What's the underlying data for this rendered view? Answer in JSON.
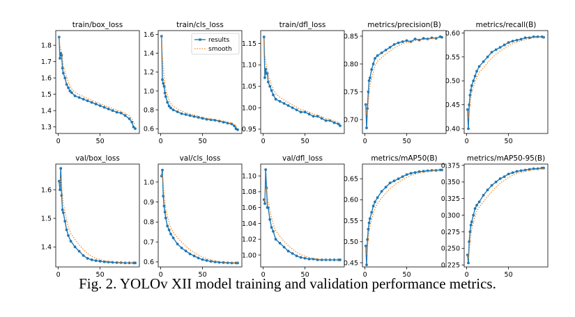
{
  "caption": "Fig. 2. YOLOv XII model training and validation performance metrics.",
  "legend": {
    "results_label": "results",
    "smooth_label": "smooth"
  },
  "colors": {
    "results": "#1f77b4",
    "smooth": "#ff7f0e",
    "axis": "#000000"
  },
  "chart_data": [
    {
      "type": "line",
      "title": "train/box_loss",
      "legend": false,
      "xlim": [
        -3,
        97
      ],
      "ylim": [
        1.26,
        1.89
      ],
      "xticks": [
        0,
        50
      ],
      "yticks": [
        1.3,
        1.4,
        1.5,
        1.6,
        1.7,
        1.8
      ],
      "ytick_labels": [
        "1.3",
        "1.4",
        "1.5",
        "1.6",
        "1.7",
        "1.8"
      ],
      "series": [
        {
          "name": "results",
          "x": [
            1,
            2,
            3,
            4,
            5,
            6,
            8,
            10,
            12,
            14,
            16,
            20,
            25,
            30,
            35,
            40,
            45,
            50,
            55,
            60,
            65,
            70,
            75,
            80,
            85,
            88,
            90,
            92
          ],
          "y": [
            1.85,
            1.72,
            1.75,
            1.74,
            1.66,
            1.63,
            1.6,
            1.56,
            1.54,
            1.52,
            1.51,
            1.49,
            1.48,
            1.47,
            1.46,
            1.45,
            1.44,
            1.43,
            1.42,
            1.41,
            1.4,
            1.39,
            1.385,
            1.37,
            1.35,
            1.33,
            1.3,
            1.29
          ]
        }
      ]
    },
    {
      "type": "line",
      "title": "train/cls_loss",
      "legend": true,
      "legend_position": "top-right",
      "xlim": [
        -3,
        97
      ],
      "ylim": [
        0.55,
        1.64
      ],
      "xticks": [
        0,
        50
      ],
      "yticks": [
        0.6,
        0.8,
        1.0,
        1.2,
        1.4,
        1.6
      ],
      "ytick_labels": [
        "0.6",
        "0.8",
        "1.0",
        "1.2",
        "1.4",
        "1.6"
      ],
      "series": [
        {
          "name": "results",
          "x": [
            1,
            2,
            3,
            4,
            5,
            6,
            8,
            10,
            12,
            15,
            20,
            25,
            30,
            35,
            40,
            45,
            50,
            55,
            60,
            65,
            70,
            75,
            80,
            85,
            88,
            90,
            92
          ],
          "y": [
            1.58,
            1.12,
            1.08,
            1.05,
            0.98,
            0.94,
            0.88,
            0.84,
            0.82,
            0.8,
            0.78,
            0.76,
            0.75,
            0.74,
            0.73,
            0.72,
            0.71,
            0.7,
            0.695,
            0.69,
            0.68,
            0.67,
            0.66,
            0.65,
            0.63,
            0.6,
            0.59
          ]
        }
      ]
    },
    {
      "type": "line",
      "title": "train/dfl_loss",
      "legend": false,
      "xlim": [
        -3,
        97
      ],
      "ylim": [
        0.94,
        1.18
      ],
      "xticks": [
        0,
        50
      ],
      "yticks": [
        0.95,
        1.0,
        1.05,
        1.1,
        1.15
      ],
      "ytick_labels": [
        "0.95",
        "1.00",
        "1.05",
        "1.10",
        "1.15"
      ],
      "series": [
        {
          "name": "results",
          "x": [
            1,
            2,
            3,
            4,
            5,
            6,
            8,
            10,
            12,
            15,
            20,
            25,
            30,
            35,
            40,
            45,
            50,
            55,
            60,
            65,
            70,
            75,
            80,
            85,
            90,
            92
          ],
          "y": [
            1.165,
            1.07,
            1.09,
            1.08,
            1.08,
            1.06,
            1.05,
            1.04,
            1.03,
            1.02,
            1.015,
            1.01,
            1.005,
            1.0,
            0.995,
            0.99,
            0.99,
            0.985,
            0.98,
            0.98,
            0.975,
            0.97,
            0.97,
            0.965,
            0.962,
            0.958
          ]
        }
      ]
    },
    {
      "type": "line",
      "title": "metrics/precision(B)",
      "legend": false,
      "xlim": [
        -3,
        97
      ],
      "ylim": [
        0.675,
        0.86
      ],
      "xticks": [
        0,
        50
      ],
      "yticks": [
        0.7,
        0.75,
        0.8,
        0.85
      ],
      "ytick_labels": [
        "0.70",
        "0.75",
        "0.80",
        "0.85"
      ],
      "series": [
        {
          "name": "results",
          "x": [
            1,
            2,
            3,
            4,
            5,
            6,
            8,
            10,
            12,
            15,
            20,
            25,
            30,
            35,
            40,
            45,
            50,
            55,
            60,
            65,
            70,
            75,
            80,
            85,
            90,
            92
          ],
          "y": [
            0.727,
            0.685,
            0.72,
            0.75,
            0.77,
            0.775,
            0.79,
            0.8,
            0.81,
            0.815,
            0.82,
            0.825,
            0.83,
            0.835,
            0.838,
            0.84,
            0.842,
            0.84,
            0.845,
            0.843,
            0.846,
            0.845,
            0.847,
            0.846,
            0.849,
            0.848
          ]
        }
      ]
    },
    {
      "type": "line",
      "title": "metrics/recall(B)",
      "legend": false,
      "xlim": [
        -3,
        97
      ],
      "ylim": [
        0.39,
        0.605
      ],
      "xticks": [
        0,
        50
      ],
      "yticks": [
        0.4,
        0.45,
        0.5,
        0.55,
        0.6
      ],
      "ytick_labels": [
        "0.40",
        "0.45",
        "0.50",
        "0.55",
        "0.60"
      ],
      "series": [
        {
          "name": "results",
          "x": [
            1,
            2,
            3,
            4,
            5,
            6,
            8,
            10,
            12,
            15,
            20,
            25,
            30,
            35,
            40,
            45,
            50,
            55,
            60,
            65,
            70,
            75,
            80,
            85,
            90,
            92
          ],
          "y": [
            0.44,
            0.4,
            0.45,
            0.47,
            0.48,
            0.49,
            0.5,
            0.51,
            0.52,
            0.53,
            0.54,
            0.55,
            0.56,
            0.565,
            0.57,
            0.575,
            0.58,
            0.583,
            0.585,
            0.587,
            0.59,
            0.59,
            0.592,
            0.592,
            0.592,
            0.591
          ]
        }
      ]
    },
    {
      "type": "line",
      "title": "val/box_loss",
      "legend": false,
      "xlim": [
        -3,
        97
      ],
      "ylim": [
        1.33,
        1.69
      ],
      "xticks": [
        0,
        50
      ],
      "yticks": [
        1.4,
        1.5,
        1.6
      ],
      "ytick_labels": [
        "1.4",
        "1.5",
        "1.6"
      ],
      "series": [
        {
          "name": "results",
          "x": [
            1,
            2,
            3,
            4,
            5,
            6,
            8,
            10,
            12,
            15,
            20,
            25,
            30,
            35,
            40,
            45,
            50,
            55,
            60,
            65,
            70,
            75,
            80,
            85,
            90,
            92
          ],
          "y": [
            1.63,
            1.6,
            1.675,
            1.58,
            1.53,
            1.52,
            1.49,
            1.46,
            1.44,
            1.42,
            1.4,
            1.385,
            1.37,
            1.36,
            1.355,
            1.352,
            1.35,
            1.348,
            1.347,
            1.346,
            1.345,
            1.345,
            1.344,
            1.344,
            1.344,
            1.344
          ]
        }
      ]
    },
    {
      "type": "line",
      "title": "val/cls_loss",
      "legend": false,
      "xlim": [
        -3,
        97
      ],
      "ylim": [
        0.575,
        1.09
      ],
      "xticks": [
        0,
        50
      ],
      "yticks": [
        0.6,
        0.7,
        0.8,
        0.9,
        1.0
      ],
      "ytick_labels": [
        "0.6",
        "0.7",
        "0.8",
        "0.9",
        "1.0"
      ],
      "series": [
        {
          "name": "results",
          "x": [
            1,
            2,
            3,
            4,
            5,
            6,
            8,
            10,
            12,
            15,
            20,
            25,
            30,
            35,
            40,
            45,
            50,
            55,
            60,
            65,
            70,
            75,
            80,
            85,
            90,
            92
          ],
          "y": [
            1.03,
            1.06,
            0.93,
            0.88,
            0.85,
            0.82,
            0.78,
            0.76,
            0.74,
            0.72,
            0.69,
            0.67,
            0.655,
            0.64,
            0.63,
            0.62,
            0.612,
            0.607,
            0.603,
            0.6,
            0.598,
            0.597,
            0.596,
            0.595,
            0.595,
            0.595
          ]
        }
      ]
    },
    {
      "type": "line",
      "title": "val/dfl_loss",
      "legend": false,
      "xlim": [
        -3,
        97
      ],
      "ylim": [
        0.985,
        1.115
      ],
      "xticks": [
        0,
        50
      ],
      "yticks": [
        1.0,
        1.02,
        1.04,
        1.06,
        1.08,
        1.1
      ],
      "ytick_labels": [
        "1.00",
        "1.02",
        "1.04",
        "1.06",
        "1.08",
        "1.10"
      ],
      "series": [
        {
          "name": "results",
          "x": [
            1,
            2,
            3,
            4,
            5,
            6,
            8,
            10,
            12,
            15,
            20,
            25,
            30,
            35,
            40,
            45,
            50,
            55,
            60,
            65,
            70,
            75,
            80,
            85,
            90,
            92
          ],
          "y": [
            1.07,
            1.065,
            1.108,
            1.085,
            1.06,
            1.06,
            1.045,
            1.035,
            1.03,
            1.02,
            1.015,
            1.01,
            1.005,
            1.002,
            0.999,
            0.997,
            0.996,
            0.995,
            0.995,
            0.994,
            0.994,
            0.994,
            0.994,
            0.994,
            0.994,
            0.994
          ]
        }
      ]
    },
    {
      "type": "line",
      "title": "metrics/mAP50(B)",
      "legend": false,
      "xlim": [
        -3,
        97
      ],
      "ylim": [
        0.44,
        0.685
      ],
      "xticks": [
        0,
        50
      ],
      "yticks": [
        0.45,
        0.5,
        0.55,
        0.6,
        0.65
      ],
      "ytick_labels": [
        "0.45",
        "0.50",
        "0.55",
        "0.60",
        "0.65"
      ],
      "series": [
        {
          "name": "results",
          "x": [
            1,
            2,
            3,
            4,
            5,
            6,
            8,
            10,
            12,
            15,
            20,
            25,
            30,
            35,
            40,
            45,
            50,
            55,
            60,
            65,
            70,
            75,
            80,
            85,
            90,
            92
          ],
          "y": [
            0.49,
            0.445,
            0.505,
            0.53,
            0.545,
            0.555,
            0.57,
            0.585,
            0.595,
            0.605,
            0.62,
            0.63,
            0.64,
            0.645,
            0.65,
            0.655,
            0.66,
            0.663,
            0.665,
            0.667,
            0.668,
            0.669,
            0.67,
            0.67,
            0.671,
            0.671
          ]
        }
      ]
    },
    {
      "type": "line",
      "title": "metrics/mAP50-95(B)",
      "legend": false,
      "xlim": [
        -3,
        97
      ],
      "ylim": [
        0.222,
        0.377
      ],
      "xticks": [
        0,
        50
      ],
      "yticks": [
        0.225,
        0.25,
        0.275,
        0.3,
        0.325,
        0.35,
        0.375
      ],
      "ytick_labels": [
        "0.225",
        "0.250",
        "0.275",
        "0.300",
        "0.325",
        "0.350",
        "0.375"
      ],
      "series": [
        {
          "name": "results",
          "x": [
            1,
            2,
            3,
            4,
            5,
            6,
            8,
            10,
            12,
            15,
            20,
            25,
            30,
            35,
            40,
            45,
            50,
            55,
            60,
            65,
            70,
            75,
            80,
            85,
            90,
            92
          ],
          "y": [
            0.24,
            0.228,
            0.26,
            0.275,
            0.285,
            0.29,
            0.3,
            0.31,
            0.315,
            0.32,
            0.33,
            0.338,
            0.345,
            0.35,
            0.355,
            0.358,
            0.362,
            0.364,
            0.366,
            0.367,
            0.368,
            0.369,
            0.37,
            0.37,
            0.371,
            0.371
          ]
        }
      ]
    }
  ]
}
